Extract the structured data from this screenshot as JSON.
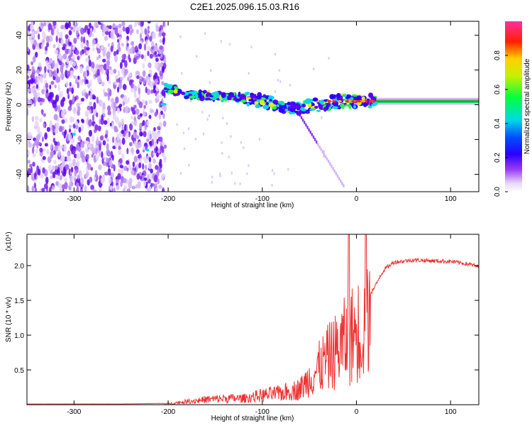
{
  "title": "C2E1.2025.096.15.03.R16",
  "colors": {
    "snr_line": "#f03030",
    "axis": "#000000",
    "background": "#ffffff"
  },
  "chart_data": [
    {
      "type": "heatmap",
      "xlabel": "Height of straight line (km)",
      "ylabel": "Frequency (Hz)",
      "xlim": [
        -350,
        130
      ],
      "ylim": [
        -50,
        48
      ],
      "xticks": [
        -300,
        -200,
        -100,
        0,
        100
      ],
      "yticks": [
        -40,
        -20,
        0,
        20,
        40
      ],
      "colorbar": {
        "label": "Normalized spectral amplitude",
        "range": [
          0.0,
          1.0
        ],
        "ticks": [
          "0.0",
          "0.2",
          "0.4",
          "0.6",
          "0.8"
        ],
        "colormap": "rainbow"
      },
      "features": {
        "noise_region_x": [
          -350,
          -203
        ],
        "trace_points": [
          {
            "x": -203,
            "f": 10
          },
          {
            "x": -180,
            "f": 6
          },
          {
            "x": -150,
            "f": 5
          },
          {
            "x": -120,
            "f": 4
          },
          {
            "x": -100,
            "f": 2
          },
          {
            "x": -80,
            "f": 0
          },
          {
            "x": -60,
            "f": -2
          },
          {
            "x": -40,
            "f": 0
          },
          {
            "x": -20,
            "f": 2
          },
          {
            "x": 0,
            "f": 2
          },
          {
            "x": 50,
            "f": 2
          },
          {
            "x": 130,
            "f": 2
          }
        ]
      }
    },
    {
      "type": "line",
      "xlabel": "Height of straight line (km)",
      "ylabel": "SNR (10 * v/v)",
      "scale_label": "(x10⁴)",
      "xlim": [
        -350,
        130
      ],
      "ylim": [
        0,
        2.45
      ],
      "xticks": [
        -300,
        -200,
        -100,
        0,
        100
      ],
      "yticks": [
        "0.5",
        "1.0",
        "1.5",
        "2.0"
      ],
      "series": [
        {
          "x": [
            -350,
            -300,
            -250,
            -200,
            -180,
            -160,
            -140,
            -120,
            -100,
            -80,
            -60,
            -50,
            -40,
            -30,
            -20,
            -10,
            0,
            10,
            20,
            25,
            30,
            40,
            60,
            80,
            100,
            120,
            130
          ],
          "values": [
            0.01,
            0.01,
            0.01,
            0.02,
            0.06,
            0.1,
            0.12,
            0.12,
            0.18,
            0.22,
            0.3,
            0.5,
            0.7,
            0.9,
            1.05,
            1.25,
            1.4,
            1.5,
            1.7,
            1.85,
            1.95,
            2.05,
            2.08,
            2.07,
            2.06,
            2.02,
            1.98
          ]
        }
      ]
    }
  ]
}
